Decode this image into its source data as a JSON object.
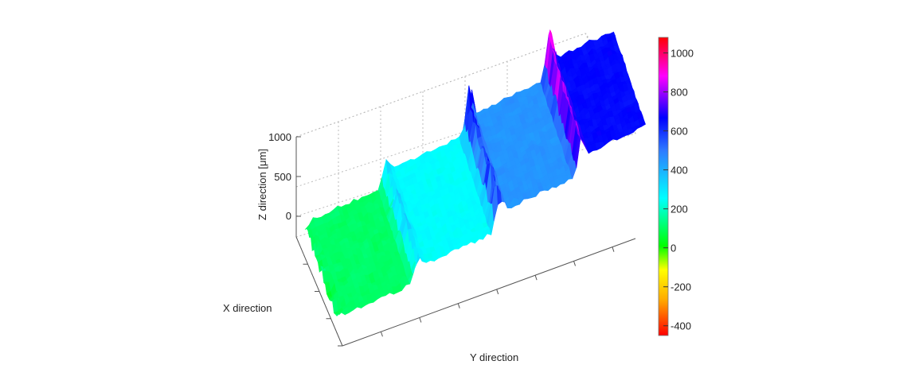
{
  "chart_data": {
    "type": "surface3d",
    "xlabel": "X direction",
    "ylabel": "Y direction",
    "zlabel": "Z direction [μm]",
    "zticks": [
      0,
      500,
      1000
    ],
    "zlim": [
      0,
      1000
    ],
    "grid": true,
    "surface": {
      "steps": [
        {
          "y_range": [
            0,
            1
          ],
          "z_level": 100
        },
        {
          "y_range": [
            1,
            2
          ],
          "z_level": 250
        },
        {
          "y_range": [
            2,
            3
          ],
          "z_level": 450
        },
        {
          "y_range": [
            3,
            3.8
          ],
          "z_level": 650
        }
      ],
      "spikes": [
        {
          "y": 1.0,
          "z": 420
        },
        {
          "y": 2.0,
          "z": 900
        },
        {
          "y": 3.0,
          "z": 1050
        }
      ]
    },
    "colorbar": {
      "ticks": [
        1000,
        800,
        600,
        400,
        200,
        0,
        -200,
        -400
      ],
      "range": [
        -450,
        1080
      ],
      "colormap": [
        "#ff0000",
        "#ffff00",
        "#00ff00",
        "#00ffff",
        "#0000ff",
        "#ff00ff",
        "#ff0000"
      ]
    }
  }
}
